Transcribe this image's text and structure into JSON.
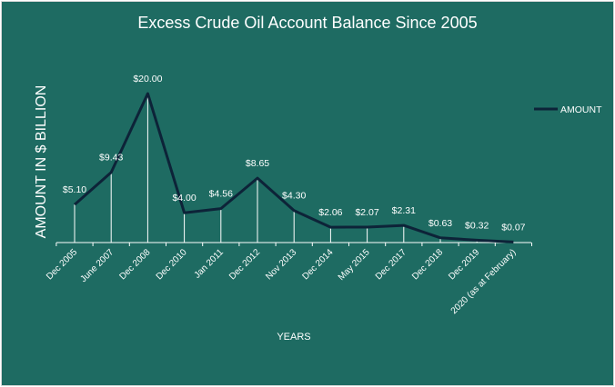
{
  "chart_data": {
    "type": "line",
    "title": "Excess Crude Oil Account Balance Since 2005",
    "xlabel": "YEARS",
    "ylabel": "AMOUNT IN $ BILLION",
    "ylim": [
      0,
      20
    ],
    "grid": false,
    "legend_position": "right",
    "categories": [
      "Dec 2005",
      "June 2007",
      "Dec 2008",
      "Dec 2010",
      "Jan 2011",
      "Dec 2012",
      "Nov 2013",
      "Dec 2014",
      "May 2015",
      "Dec 2017",
      "Dec 2018",
      "Dec 2019",
      "2020 (as at February)"
    ],
    "series": [
      {
        "name": "AMOUNT",
        "values": [
          5.1,
          9.43,
          20.0,
          4.0,
          4.56,
          8.65,
          4.3,
          2.06,
          2.07,
          2.31,
          0.63,
          0.32,
          0.07
        ],
        "labels": [
          "$5.10",
          "$9.43",
          "$20.00",
          "$4.00",
          "$4.56",
          "$8.65",
          "$4.30",
          "$2.06",
          "$2.07",
          "$2.31",
          "$0.63",
          "$0.32",
          "$0.07"
        ],
        "color": "#0d2338"
      }
    ],
    "colors": {
      "background": "#1e6b62",
      "text": "#ffffff",
      "drop_lines": "#ffffff",
      "axis": "#ffffff"
    }
  }
}
